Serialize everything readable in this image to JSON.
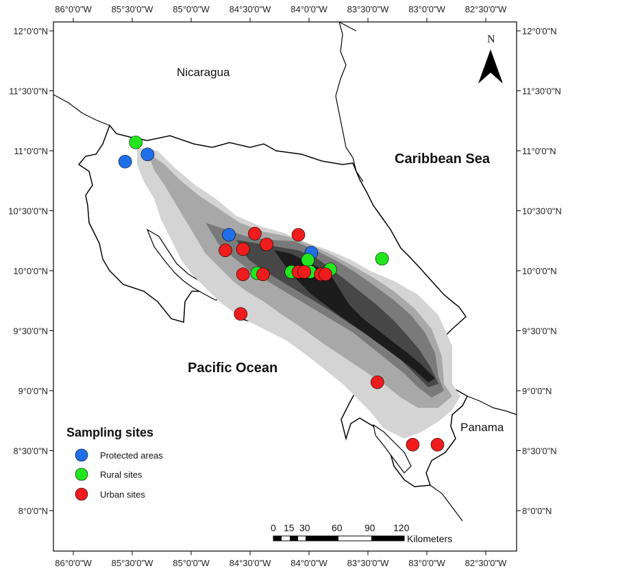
{
  "axes": {
    "top_labels": [
      "86°0'0\"W",
      "85°30'0\"W",
      "85°0'0\"W",
      "84°30'0\"W",
      "84°0'0\"W",
      "83°30'0\"W",
      "83°0'0\"W",
      "82°30'0\"W"
    ],
    "bottom_labels": [
      "86°0'0\"W",
      "85°30'0\"W",
      "85°0'0\"W",
      "84°30'0\"W",
      "84°0'0\"W",
      "83°30'0\"W",
      "83°0'0\"W",
      "82°30'0\"W"
    ],
    "left_labels": [
      "12°0'0\"N",
      "11°30'0\"N",
      "11°0'0\"N",
      "10°30'0\"N",
      "10°0'0\"N",
      "9°30'0\"N",
      "9°0'0\"N",
      "8°30'0\"N",
      "8°0'0\"N"
    ],
    "right_labels": [
      "12°0'0\"N",
      "11°30'0\"N",
      "11°0'0\"N",
      "10°30'0\"N",
      "10°0'0\"N",
      "9°30'0\"N",
      "9°0'0\"N",
      "8°30'0\"N",
      "8°0'0\"N"
    ]
  },
  "places": {
    "nicaragua": "Nicaragua",
    "caribbean": "Caribbean Sea",
    "pacific": "Pacific Ocean",
    "panama": "Panama"
  },
  "north_arrow": {
    "label": "N"
  },
  "legend": {
    "title": "Sampling sites",
    "items": [
      {
        "label": "Protected areas",
        "color": "#1f6fe8"
      },
      {
        "label": "Rural sites",
        "color": "#22e61f"
      },
      {
        "label": "Urban sites",
        "color": "#ee1c1c"
      }
    ]
  },
  "scale_bar": {
    "ticks": [
      "0",
      "15",
      "30",
      "60",
      "90",
      "120"
    ],
    "unit": "Kilometers"
  },
  "colors": {
    "protected": "#1f6fe8",
    "rural": "#22e61f",
    "urban": "#ee1c1c",
    "elev1": "#d4d4d4",
    "elev2": "#a8a8a8",
    "elev3": "#7a7a7a",
    "elev4": "#474747",
    "elev5": "#1c1c1c"
  },
  "sites": [
    {
      "type": "protected",
      "lon": -85.56,
      "lat": 10.91
    },
    {
      "type": "protected",
      "lon": -85.37,
      "lat": 10.97
    },
    {
      "type": "protected",
      "lon": -84.68,
      "lat": 10.3
    },
    {
      "type": "protected",
      "lon": -83.98,
      "lat": 10.15
    },
    {
      "type": "rural",
      "lon": -85.47,
      "lat": 11.07
    },
    {
      "type": "rural",
      "lon": -84.44,
      "lat": 9.98
    },
    {
      "type": "rural",
      "lon": -84.15,
      "lat": 9.99
    },
    {
      "type": "rural",
      "lon": -84.01,
      "lat": 10.09
    },
    {
      "type": "rural",
      "lon": -83.99,
      "lat": 9.99
    },
    {
      "type": "rural",
      "lon": -83.82,
      "lat": 10.01
    },
    {
      "type": "rural",
      "lon": -83.38,
      "lat": 10.1
    },
    {
      "type": "urban",
      "lon": -84.56,
      "lat": 10.18
    },
    {
      "type": "urban",
      "lon": -84.46,
      "lat": 10.31
    },
    {
      "type": "urban",
      "lon": -84.36,
      "lat": 10.22
    },
    {
      "type": "urban",
      "lon": -84.09,
      "lat": 10.3
    },
    {
      "type": "urban",
      "lon": -84.71,
      "lat": 10.17
    },
    {
      "type": "urban",
      "lon": -84.56,
      "lat": 9.97
    },
    {
      "type": "urban",
      "lon": -84.39,
      "lat": 9.97
    },
    {
      "type": "urban",
      "lon": -84.09,
      "lat": 9.99
    },
    {
      "type": "urban",
      "lon": -84.04,
      "lat": 9.99
    },
    {
      "type": "urban",
      "lon": -83.9,
      "lat": 9.97
    },
    {
      "type": "urban",
      "lon": -83.86,
      "lat": 9.97
    },
    {
      "type": "urban",
      "lon": -84.58,
      "lat": 9.64
    },
    {
      "type": "urban",
      "lon": -83.42,
      "lat": 9.07
    },
    {
      "type": "urban",
      "lon": -83.12,
      "lat": 8.55
    },
    {
      "type": "urban",
      "lon": -82.91,
      "lat": 8.55
    }
  ]
}
